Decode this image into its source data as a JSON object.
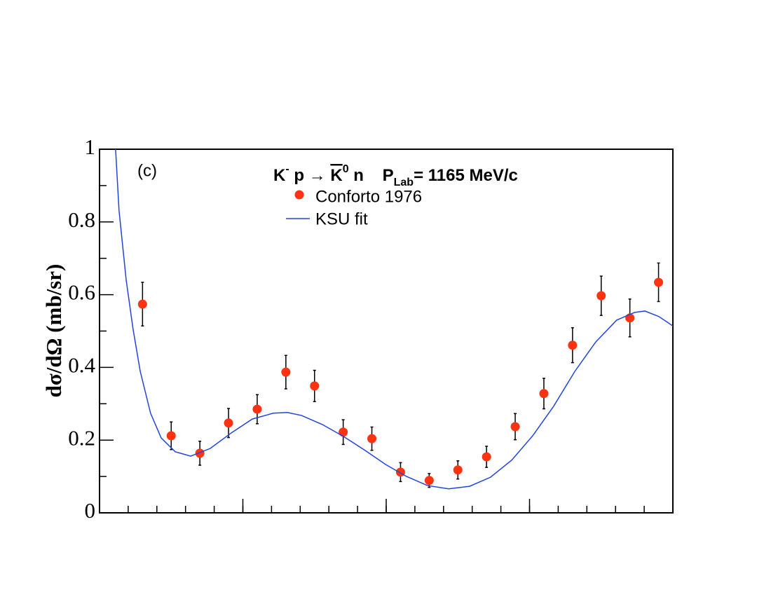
{
  "chart_data": {
    "type": "scatter",
    "title_parts": [
      "K",
      "-",
      " p → ",
      "K",
      "0",
      " n    P",
      "Lab",
      "= 1165 MeV/c"
    ],
    "annotation": "(c)",
    "y_label": "dσ/dΩ (mb/sr)",
    "xlim": [
      -1,
      1
    ],
    "xticks": [
      -0.5,
      0,
      0.5
    ],
    "ylim": [
      0,
      1
    ],
    "yticks": [
      0,
      0.2,
      0.4,
      0.6,
      0.8,
      1
    ],
    "series": [
      {
        "name": "Conforto 1976",
        "color": "#ff3311",
        "x": [
          -0.85,
          -0.75,
          -0.65,
          -0.55,
          -0.45,
          -0.35,
          -0.25,
          -0.15,
          -0.05,
          0.05,
          0.15,
          0.25,
          0.35,
          0.45,
          0.55,
          0.65,
          0.75,
          0.85,
          0.95
        ],
        "values": [
          0.574,
          0.212,
          0.164,
          0.247,
          0.285,
          0.387,
          0.349,
          0.222,
          0.204,
          0.112,
          0.089,
          0.118,
          0.154,
          0.237,
          0.328,
          0.461,
          0.597,
          0.536,
          0.634
        ],
        "errors": [
          0.06,
          0.038,
          0.033,
          0.04,
          0.04,
          0.046,
          0.043,
          0.034,
          0.032,
          0.026,
          0.019,
          0.025,
          0.029,
          0.036,
          0.042,
          0.048,
          0.054,
          0.052,
          0.053
        ]
      },
      {
        "name": "KSU fit",
        "color": "#2244dd",
        "type": "line",
        "x": [
          -0.944,
          -0.932,
          -0.907,
          -0.883,
          -0.858,
          -0.822,
          -0.785,
          -0.736,
          -0.682,
          -0.614,
          -0.54,
          -0.467,
          -0.394,
          -0.345,
          -0.296,
          -0.223,
          -0.149,
          -0.076,
          -0.002,
          0.071,
          0.144,
          0.218,
          0.291,
          0.364,
          0.438,
          0.511,
          0.584,
          0.658,
          0.731,
          0.804,
          0.866,
          0.902,
          0.951,
          1.0
        ],
        "values": [
          1.0,
          0.832,
          0.64,
          0.505,
          0.389,
          0.274,
          0.206,
          0.168,
          0.156,
          0.177,
          0.22,
          0.258,
          0.274,
          0.276,
          0.268,
          0.243,
          0.21,
          0.173,
          0.133,
          0.1,
          0.075,
          0.066,
          0.073,
          0.098,
          0.145,
          0.212,
          0.293,
          0.389,
          0.47,
          0.53,
          0.551,
          0.555,
          0.54,
          0.514
        ]
      }
    ]
  }
}
